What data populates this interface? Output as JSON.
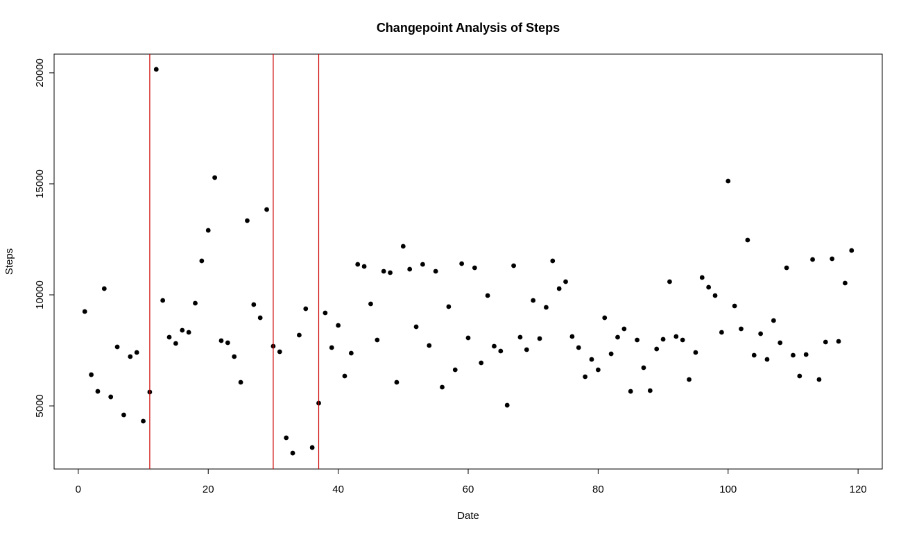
{
  "chart_data": {
    "type": "scatter",
    "title": "Changepoint Analysis of Steps",
    "x_label": "Date",
    "y_label": "Steps",
    "x": [
      1,
      2,
      3,
      4,
      5,
      6,
      7,
      8,
      9,
      10,
      11,
      12,
      13,
      14,
      15,
      16,
      17,
      18,
      19,
      20,
      21,
      22,
      23,
      24,
      25,
      26,
      27,
      28,
      29,
      30,
      31,
      32,
      33,
      34,
      35,
      36,
      37,
      38,
      39,
      40,
      41,
      42,
      43,
      44,
      45,
      46,
      47,
      48,
      49,
      50,
      51,
      52,
      53,
      54,
      55,
      56,
      57,
      58,
      59,
      60,
      61,
      62,
      63,
      64,
      65,
      66,
      67,
      68,
      69,
      70,
      71,
      72,
      73,
      74,
      75,
      76,
      77,
      78,
      79,
      80,
      81,
      82,
      83,
      84,
      85,
      86,
      87,
      88,
      89,
      90,
      91,
      92,
      93,
      94,
      95,
      96,
      97,
      98,
      99,
      100,
      101,
      102,
      103,
      104,
      105,
      106,
      107,
      108,
      109,
      110,
      111,
      112,
      113,
      114,
      115,
      116,
      117,
      118,
      119
    ],
    "values": [
      9250,
      6406,
      5656,
      10281,
      5406,
      7656,
      4594,
      7219,
      7406,
      4313,
      5625,
      20156,
      9750,
      8094,
      7813,
      8406,
      8313,
      9625,
      11531,
      12906,
      15281,
      7938,
      7844,
      7219,
      6063,
      13344,
      9563,
      8969,
      13844,
      7688,
      7438,
      3563,
      2875,
      8188,
      9375,
      3125,
      5125,
      9188,
      7625,
      8625,
      6344,
      7375,
      11375,
      11281,
      9594,
      7969,
      11063,
      11000,
      6063,
      12188,
      11156,
      8563,
      11375,
      7719,
      11063,
      5844,
      9469,
      6625,
      11406,
      8063,
      11219,
      6938,
      9969,
      7688,
      7469,
      5031,
      11313,
      8094,
      7531,
      9750,
      8031,
      9438,
      11531,
      10281,
      10594,
      8125,
      7625,
      6313,
      7094,
      6625,
      8969,
      7344,
      8094,
      8469,
      5656,
      7969,
      6719,
      5688,
      7563,
      8000,
      10594,
      8125,
      7969,
      6188,
      7406,
      10781,
      10344,
      9969,
      8313,
      15125,
      9500,
      8469,
      12469,
      7281,
      8250,
      7094,
      8844,
      7844,
      11219,
      7281,
      6344,
      7313,
      11594,
      6188,
      7875,
      11625,
      7906,
      10531,
      12000
    ],
    "color": "#000000",
    "changepoints": [
      11,
      30,
      37
    ],
    "changepoint_color": "#cc0000",
    "xlim": [
      -3.72,
      123.72
    ],
    "xticks": [
      0,
      20,
      40,
      60,
      80,
      100,
      120
    ],
    "ylim": [
      2158,
      20842
    ],
    "yticks": [
      5000,
      10000,
      15000,
      20000
    ]
  }
}
